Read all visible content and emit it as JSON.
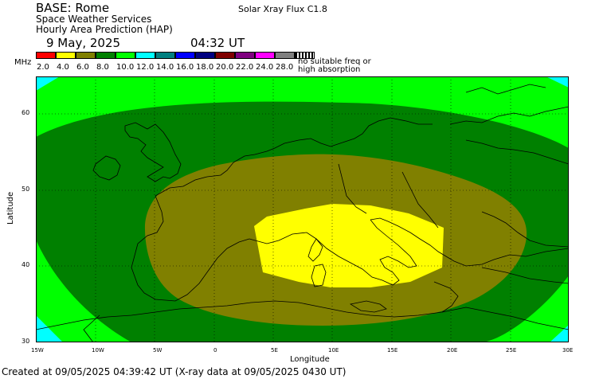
{
  "header": {
    "base": "BASE: Rome",
    "org": "Space Weather Services",
    "product": "Hourly Area Prediction (HAP)",
    "date": "9 May, 2025",
    "time": "04:32 UT",
    "flux": "Solar Xray Flux C1.8"
  },
  "scale": {
    "unit": "MHz",
    "labels": [
      "2.0",
      "4.0",
      "6.0",
      "8.0",
      "10.0",
      "12.0",
      "14.0",
      "16.0",
      "18.0",
      "20.0",
      "22.0",
      "24.0",
      "28.0"
    ],
    "colors": [
      "#ff0000",
      "#ffff00",
      "#808000",
      "#008000",
      "#00ff00",
      "#00ffff",
      "#008080",
      "#0000ff",
      "#000080",
      "#800000",
      "#800080",
      "#ff00ff",
      "#808080"
    ],
    "no_suitable_line1": "no suitable freq or",
    "no_suitable_line2": "high absorption"
  },
  "map": {
    "ylabel": "Latitude",
    "xlabel": "Longitude",
    "lat_ticks": [
      "60",
      "50",
      "40",
      "30"
    ],
    "lon_ticks": [
      "15W",
      "10W",
      "5W",
      "0",
      "5E",
      "10E",
      "15E",
      "20E",
      "25E",
      "30E"
    ],
    "zones": [
      {
        "freq_mhz": "10.0",
        "color": "#00ff00"
      },
      {
        "freq_mhz": "8.0",
        "color": "#008000"
      },
      {
        "freq_mhz": "6.0",
        "color": "#808000"
      },
      {
        "freq_mhz": "4.0",
        "color": "#ffff00"
      },
      {
        "freq_mhz": "12.0",
        "color": "#00ffff"
      }
    ]
  },
  "footer": "Created at 09/05/2025 04:39:42 UT (X-ray data at 09/05/2025 0430 UT)"
}
